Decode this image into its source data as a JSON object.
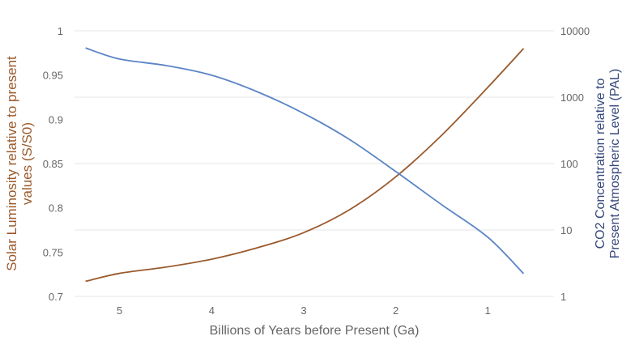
{
  "chart_data": {
    "type": "line",
    "xlabel": "Billions of Years before Present (Ga)",
    "ylabel_left": [
      "Solar Luminosity relative to present",
      "values (S/S0)"
    ],
    "ylabel_right": [
      "CO2 Concentration relative to",
      "Present Atmospheric Level (PAL)"
    ],
    "xlim": [
      5.49,
      0.28
    ],
    "x_reversed": true,
    "xticks": [
      5,
      4,
      3,
      2,
      1
    ],
    "ylim_left": [
      0.7,
      1
    ],
    "yticks_left": [
      "0.7",
      "0.75",
      "0.8",
      "0.85",
      "0.9",
      "0.95",
      "1"
    ],
    "ylim_right": [
      1,
      10000
    ],
    "right_scale": "log",
    "yticks_right": [
      "1",
      "10",
      "100",
      "1000",
      "10000"
    ],
    "grid": "horizontal at right-axis ticks",
    "colors": {
      "luminosity": "#9a5a2c",
      "co2": "#5b84c6",
      "left_title": "#9a5a2c",
      "right_title": "#35477a",
      "tick": "#666666",
      "grid": "#e4e4e4"
    },
    "series": [
      {
        "axis": "left",
        "x": [
          5.37,
          5.0,
          4.5,
          4.0,
          3.5,
          3.0,
          2.5,
          2.0,
          1.5,
          1.0,
          0.61
        ],
        "values": [
          0.717,
          0.726,
          0.733,
          0.742,
          0.755,
          0.772,
          0.798,
          0.835,
          0.882,
          0.936,
          0.98
        ]
      },
      {
        "axis": "right",
        "x": [
          5.37,
          5.0,
          4.5,
          4.0,
          3.5,
          3.0,
          2.5,
          2.0,
          1.5,
          1.0,
          0.61
        ],
        "values": [
          5500,
          3750,
          3000,
          2140,
          1200,
          570,
          230,
          76,
          24,
          7.8,
          2.2
        ]
      }
    ]
  }
}
